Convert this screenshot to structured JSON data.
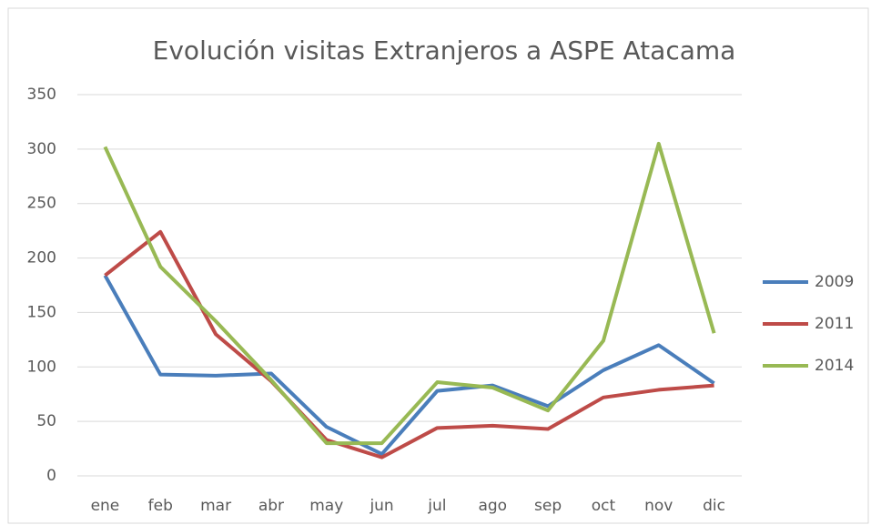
{
  "chart_data": {
    "type": "line",
    "title": "Evolución visitas Extranjeros a ASPE Atacama",
    "categories": [
      "ene",
      "feb",
      "mar",
      "abr",
      "may",
      "jun",
      "jul",
      "ago",
      "sep",
      "oct",
      "nov",
      "dic"
    ],
    "series": [
      {
        "name": "2009",
        "color": "#4a7ebb",
        "values": [
          184,
          93,
          92,
          94,
          45,
          20,
          78,
          83,
          64,
          97,
          120,
          85
        ]
      },
      {
        "name": "2011",
        "color": "#be4b48",
        "values": [
          184,
          224,
          130,
          87,
          33,
          17,
          44,
          46,
          43,
          72,
          79,
          83
        ]
      },
      {
        "name": "2014",
        "color": "#98b954",
        "values": [
          302,
          192,
          142,
          88,
          30,
          30,
          86,
          81,
          60,
          124,
          305,
          131
        ]
      }
    ],
    "ylim": [
      0,
      350
    ],
    "yticks": [
      0,
      50,
      100,
      150,
      200,
      250,
      300,
      350
    ],
    "grid": true,
    "legend": "right"
  }
}
